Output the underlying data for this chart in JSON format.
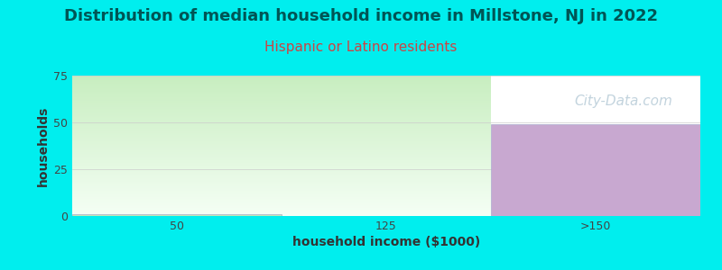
{
  "title": "Distribution of median household income in Millstone, NJ in 2022",
  "subtitle": "Hispanic or Latino residents",
  "title_color": "#005555",
  "subtitle_color": "#cc4444",
  "xlabel": "household income ($1000)",
  "ylabel": "households",
  "background_color": "#00EEEE",
  "plot_bg_color": "#ffffff",
  "categories": [
    "50",
    "125",
    ">150"
  ],
  "bar1_value": 1,
  "bar3_value": 49,
  "green_top_color": "#f5fff5",
  "green_bottom_color": "#c8eec0",
  "purple_color": "#c8a8d0",
  "bar_edge_color": "#aaaacc",
  "ylim": [
    0,
    75
  ],
  "yticks": [
    0,
    25,
    50,
    75
  ],
  "title_fontsize": 13,
  "subtitle_fontsize": 11,
  "axis_label_fontsize": 10,
  "tick_fontsize": 9,
  "watermark_text": "City-Data.com",
  "watermark_color": "#b8ccd8",
  "watermark_fontsize": 11
}
